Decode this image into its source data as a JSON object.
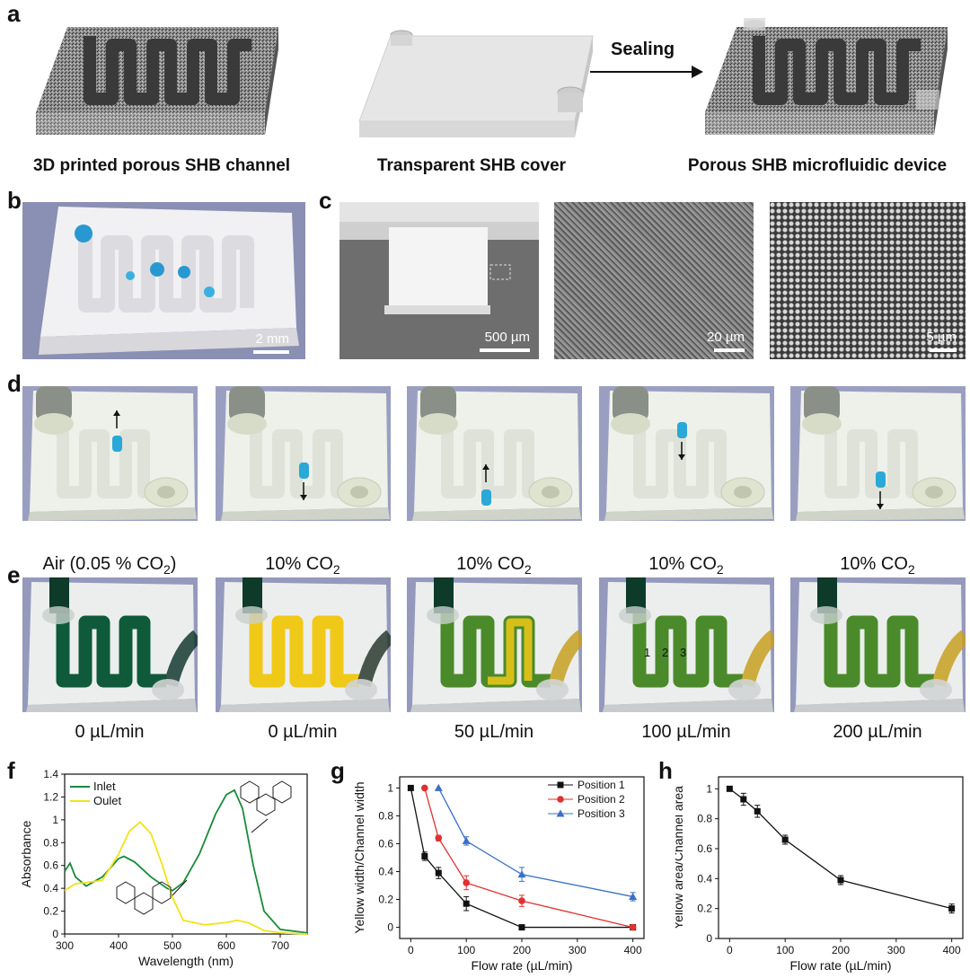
{
  "panels": {
    "a": {
      "label": "a",
      "captions": [
        "3D printed porous SHB channel",
        "Transparent SHB cover",
        "Porous SHB microfluidic device"
      ],
      "arrow_label": "Sealing"
    },
    "b": {
      "label": "b",
      "scale": "2 mm"
    },
    "c": {
      "label": "c",
      "scales": [
        "500 µm",
        "20 µm",
        "5 µm"
      ]
    },
    "d": {
      "label": "d"
    },
    "e": {
      "label": "e",
      "top_captions": [
        "Air (0.05 % CO",
        "10% CO",
        "10% CO",
        "10% CO",
        "10% CO"
      ],
      "top_sub": [
        "2",
        "2",
        "2",
        "2",
        "2"
      ],
      "top_close": [
        ")",
        "",
        "",
        "",
        ""
      ],
      "bottom_captions": [
        "0 µL/min",
        "0 µL/min",
        "50 µL/min",
        "100 µL/min",
        "200 µL/min"
      ],
      "positions": [
        "1",
        "2",
        "3"
      ]
    },
    "f": {
      "label": "f"
    },
    "g": {
      "label": "g"
    },
    "h": {
      "label": "h"
    }
  },
  "colors": {
    "inlet": "#1a8a3a",
    "outlet": "#f2e21a",
    "pos1": "#111111",
    "pos2": "#e03030",
    "pos3": "#3a70c8",
    "dye_green": "#0e5a3a",
    "dye_yellow": "#f0c818",
    "water_blue": "#2aa8d8"
  },
  "chart_data": [
    {
      "type": "line",
      "panel": "f",
      "xlabel": "Wavelength (nm)",
      "ylabel": "Absorbance",
      "xlim": [
        300,
        750
      ],
      "ylim": [
        0,
        1.4
      ],
      "xticks": [
        300,
        400,
        500,
        600,
        700
      ],
      "yticks": [
        0,
        0.2,
        0.4,
        0.6,
        0.8,
        1,
        1.2,
        1.4
      ],
      "legend": "top-left",
      "series": [
        {
          "name": "Inlet",
          "x": [
            300,
            310,
            320,
            340,
            370,
            400,
            410,
            430,
            460,
            490,
            500,
            520,
            550,
            580,
            600,
            615,
            630,
            650,
            670,
            700,
            750
          ],
          "y": [
            0.55,
            0.62,
            0.5,
            0.42,
            0.5,
            0.66,
            0.68,
            0.63,
            0.5,
            0.4,
            0.38,
            0.45,
            0.7,
            1.05,
            1.22,
            1.26,
            1.1,
            0.6,
            0.2,
            0.04,
            0.01
          ]
        },
        {
          "name": "Oulet",
          "x": [
            300,
            320,
            340,
            370,
            400,
            420,
            440,
            460,
            480,
            500,
            520,
            560,
            600,
            620,
            640,
            670,
            700,
            750
          ],
          "y": [
            0.38,
            0.44,
            0.45,
            0.47,
            0.7,
            0.9,
            0.98,
            0.88,
            0.62,
            0.32,
            0.12,
            0.08,
            0.1,
            0.12,
            0.1,
            0.03,
            0.01,
            0.0
          ]
        }
      ]
    },
    {
      "type": "line",
      "panel": "g",
      "xlabel": "Flow rate (µL/min)",
      "ylabel": "Yellow width/Channel width",
      "xlim": [
        -20,
        420
      ],
      "ylim": [
        -0.08,
        1.08
      ],
      "xticks": [
        0,
        100,
        200,
        300,
        400
      ],
      "yticks": [
        0,
        0.2,
        0.4,
        0.6,
        0.8,
        1
      ],
      "legend": "top-right",
      "series": [
        {
          "name": "Position 1",
          "x": [
            0,
            25,
            50,
            100,
            200,
            400
          ],
          "y": [
            1,
            0.51,
            0.39,
            0.17,
            0,
            0
          ],
          "err": [
            0,
            0.03,
            0.04,
            0.05,
            0,
            0
          ]
        },
        {
          "name": "Position 2",
          "x": [
            25,
            50,
            100,
            200,
            400
          ],
          "y": [
            1,
            0.64,
            0.32,
            0.19,
            0
          ],
          "err": [
            0,
            0.02,
            0.05,
            0.04,
            0
          ]
        },
        {
          "name": "Position 3",
          "x": [
            50,
            100,
            200,
            400
          ],
          "y": [
            1,
            0.62,
            0.38,
            0.22
          ],
          "err": [
            0,
            0.03,
            0.05,
            0.03
          ]
        }
      ]
    },
    {
      "type": "line",
      "panel": "h",
      "xlabel": "Flow rate (µL/min)",
      "ylabel": "Yellow area/Channel area",
      "xlim": [
        -20,
        420
      ],
      "ylim": [
        0,
        1.08
      ],
      "xticks": [
        0,
        100,
        200,
        300,
        400
      ],
      "yticks": [
        0,
        0.2,
        0.4,
        0.6,
        0.8,
        1
      ],
      "series": [
        {
          "x": [
            0,
            25,
            50,
            100,
            200,
            400
          ],
          "y": [
            1,
            0.93,
            0.85,
            0.66,
            0.39,
            0.2
          ],
          "err": [
            0,
            0.04,
            0.04,
            0.03,
            0.03,
            0.03
          ]
        }
      ]
    }
  ]
}
